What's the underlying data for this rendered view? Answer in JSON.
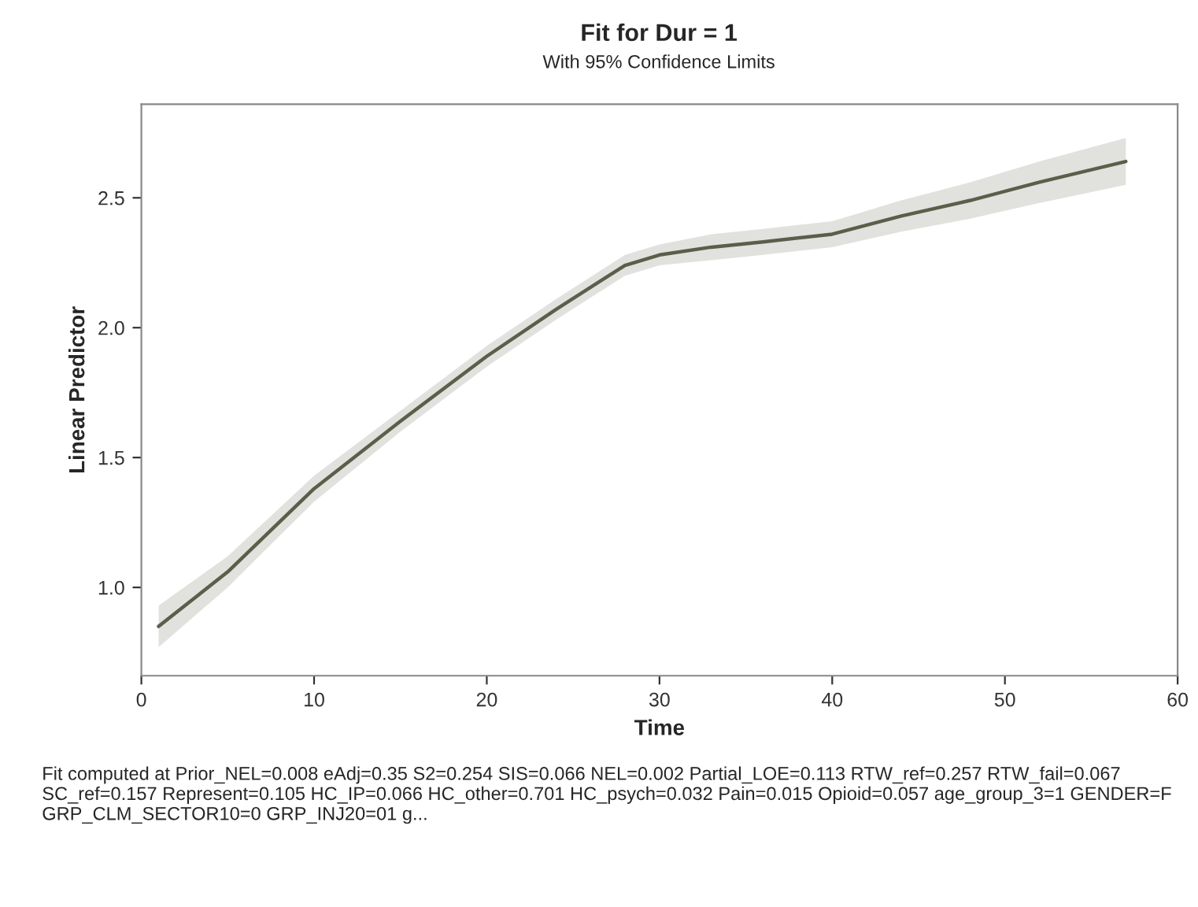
{
  "chart_data": {
    "type": "line",
    "title": "Fit for Dur = 1",
    "subtitle": "With 95% Confidence Limits",
    "xlabel": "Time",
    "ylabel": "Linear Predictor",
    "annotations": [
      "Fit computed at Prior_NEL=0.008 eAdj=0.35 S2=0.254 SIS=0.066 NEL=0.002 Partial_LOE=0.113 RTW_ref=0.257 RTW_fail=0.067 SC_ref=0.157 Represent=0.105 HC_IP=0.066 HC_other=0.701 HC_psych=0.032 Pain=0.015 Opioid=0.057 age_group_3=1 GENDER=F GRP_CLM_SECTOR10=0 GRP_INJ20=01 g..."
    ],
    "x": [
      1,
      5,
      10,
      15,
      20,
      24,
      28,
      30,
      33,
      36,
      40,
      44,
      48,
      52,
      57
    ],
    "series": [
      {
        "color": "#5a5f4a",
        "values": [
          0.85,
          1.06,
          1.38,
          1.64,
          1.89,
          2.07,
          2.24,
          2.28,
          2.31,
          2.33,
          2.36,
          2.43,
          2.49,
          2.56,
          2.64
        ],
        "lower": [
          0.77,
          1.0,
          1.33,
          1.6,
          1.85,
          2.03,
          2.2,
          2.24,
          2.26,
          2.28,
          2.31,
          2.37,
          2.42,
          2.48,
          2.55
        ],
        "upper": [
          0.93,
          1.12,
          1.43,
          1.68,
          1.93,
          2.11,
          2.28,
          2.32,
          2.36,
          2.38,
          2.41,
          2.49,
          2.56,
          2.64,
          2.73
        ]
      }
    ],
    "xlim": [
      0,
      60
    ],
    "xticks": [
      0,
      10,
      20,
      30,
      40,
      50,
      60
    ],
    "ylim": [
      0.66,
      2.86
    ],
    "yticks": [
      {
        "value": 1.0,
        "label": "1.0"
      },
      1.5,
      {
        "value": 2.0,
        "label": "2.0"
      },
      2.5
    ],
    "grid": false
  }
}
